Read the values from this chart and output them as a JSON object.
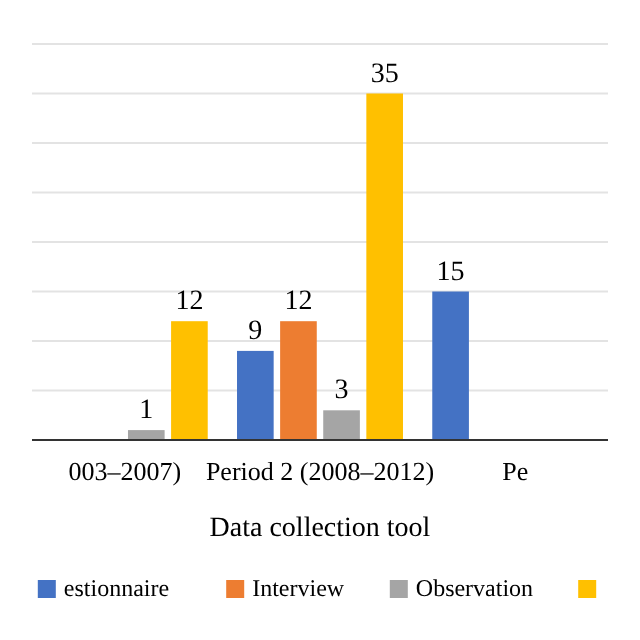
{
  "chart_data": {
    "type": "bar",
    "xlabel": "Data collection tool",
    "categories": [
      "003–2007)",
      "Period 2 (2008–2012)",
      "Pe"
    ],
    "series": [
      {
        "name": "estionnaire",
        "color": "#4472c4",
        "values": [
          null,
          9,
          15
        ]
      },
      {
        "name": "Interview",
        "color": "#ed7d31",
        "values": [
          null,
          12,
          null
        ]
      },
      {
        "name": "Observation",
        "color": "#a5a5a5",
        "values": [
          1,
          3,
          null
        ]
      },
      {
        "color": "#ffc000",
        "values": [
          12,
          35,
          null
        ]
      }
    ],
    "ylim": [
      0,
      40
    ],
    "yticks": [
      {
        "value": 0,
        "label": null
      },
      {
        "value": 5,
        "label": null
      },
      {
        "value": 10,
        "label": null
      },
      {
        "value": 15,
        "label": null
      },
      {
        "value": 20,
        "label": null
      },
      {
        "value": 25,
        "label": null
      },
      {
        "value": 30,
        "label": null
      },
      {
        "value": 35,
        "label": null
      },
      {
        "value": 40,
        "label": null
      }
    ],
    "tick_labels": "x",
    "grid": "y",
    "data_labels": true,
    "legend": "bottom"
  }
}
